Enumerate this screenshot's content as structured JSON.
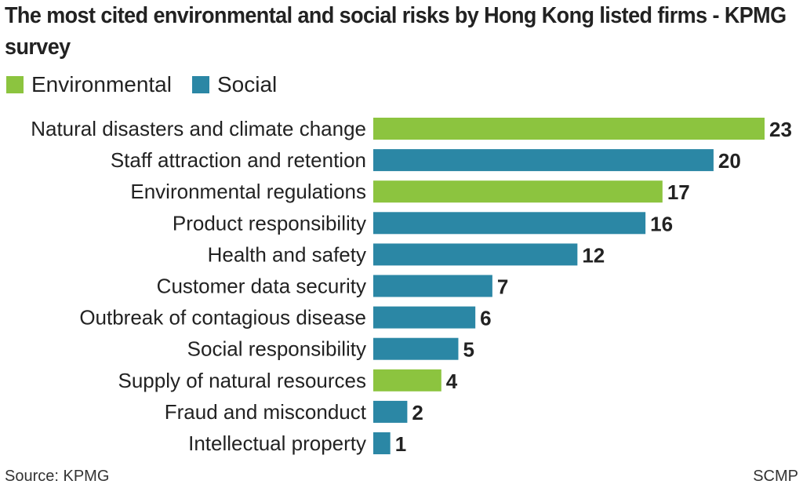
{
  "chart_data": {
    "type": "bar",
    "orientation": "horizontal",
    "title": "The most cited environmental and social risks by Hong Kong listed firms - KPMG survey",
    "legend": [
      {
        "name": "Environmental",
        "color": "#8cc43f"
      },
      {
        "name": "Social",
        "color": "#2b87a5"
      }
    ],
    "legend_placement": "top-left",
    "categories": [
      "Natural disasters and climate change",
      "Staff attraction and retention",
      "Environmental regulations",
      "Product responsibility",
      "Health and safety",
      "Customer data security",
      "Outbreak of contagious disease",
      "Social responsibility",
      "Supply of natural resources",
      "Fraud and misconduct",
      "Intellectual property"
    ],
    "values": [
      23,
      20,
      17,
      16,
      12,
      7,
      6,
      5,
      4,
      2,
      1
    ],
    "groups": [
      "Environmental",
      "Social",
      "Environmental",
      "Social",
      "Social",
      "Social",
      "Social",
      "Social",
      "Environmental",
      "Social",
      "Social"
    ],
    "xlim": [
      0,
      23
    ],
    "grid": false,
    "source": "Source: KPMG",
    "credit": "SCMP"
  }
}
